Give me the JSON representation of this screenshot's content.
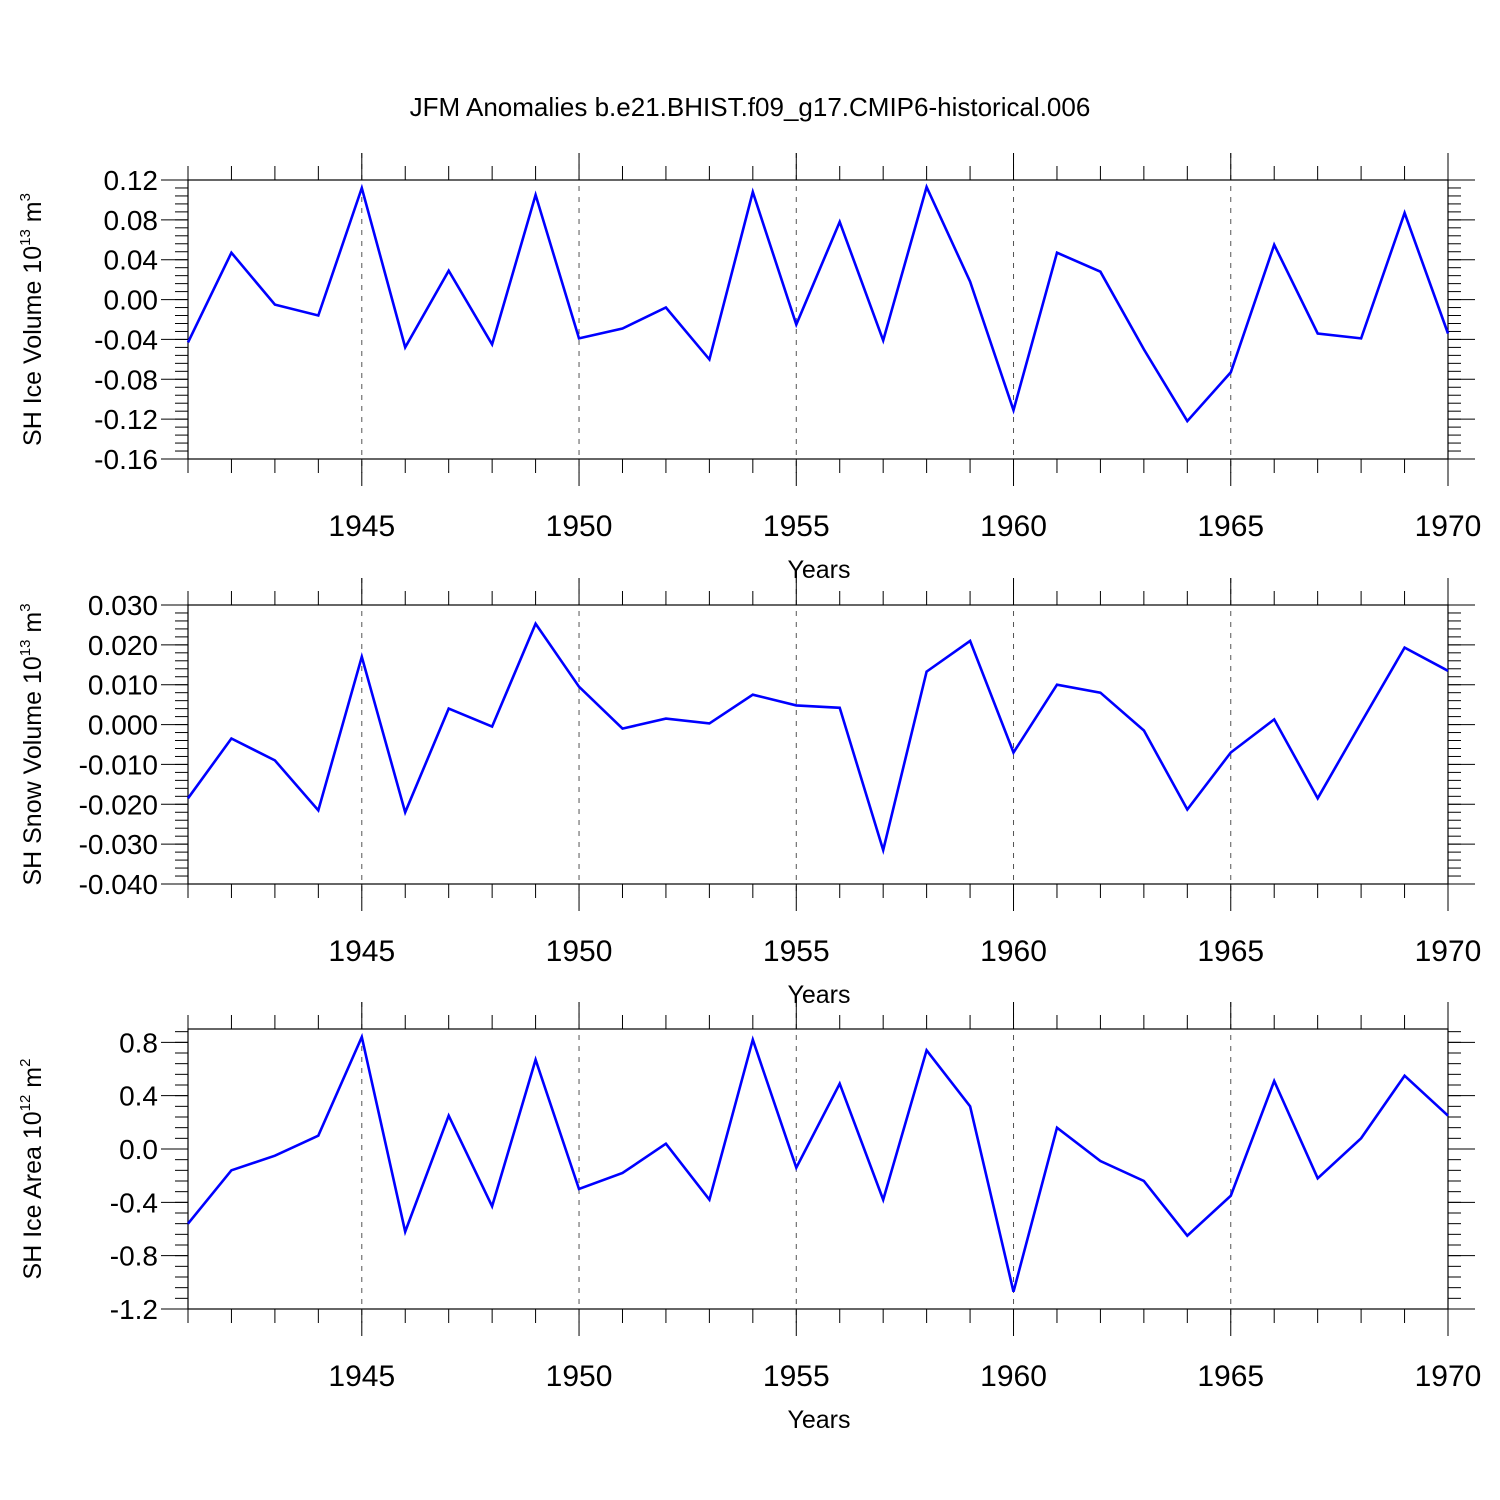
{
  "title": "JFM Anomalies b.e21.BHIST.f09_g17.CMIP6-historical.006",
  "line_color": "#0000ff",
  "chart_data": [
    {
      "type": "line",
      "ylabel": {
        "main": "SH Ice Volume 10",
        "sup": "13",
        "unit": " m",
        "unit_sup": "3"
      },
      "xlabel": "Years",
      "xlim": [
        1941,
        1970
      ],
      "ylim": [
        -0.16,
        0.12
      ],
      "yticks": [
        "0.12",
        "0.08",
        "0.04",
        "0.00",
        "-0.04",
        "-0.08",
        "-0.12",
        "-0.16"
      ],
      "ytick_values": [
        0.12,
        0.08,
        0.04,
        0.0,
        -0.04,
        -0.08,
        -0.12,
        -0.16
      ],
      "yminor_step": 0.008,
      "xticks": [
        "1945",
        "1950",
        "1955",
        "1960",
        "1965",
        "1970"
      ],
      "xtick_values": [
        1945,
        1950,
        1955,
        1960,
        1965,
        1970
      ],
      "x": [
        1941,
        1942,
        1943,
        1944,
        1945,
        1946,
        1947,
        1948,
        1949,
        1950,
        1951,
        1952,
        1953,
        1954,
        1955,
        1956,
        1957,
        1958,
        1959,
        1960,
        1961,
        1962,
        1963,
        1964,
        1965,
        1966,
        1967,
        1968,
        1969,
        1970
      ],
      "values": [
        -0.043,
        0.047,
        -0.005,
        -0.016,
        0.112,
        -0.048,
        0.029,
        -0.045,
        0.105,
        -0.039,
        -0.029,
        -0.008,
        -0.06,
        0.108,
        -0.025,
        0.078,
        -0.041,
        0.113,
        0.018,
        -0.111,
        0.047,
        0.028,
        -0.05,
        -0.122,
        -0.073,
        0.055,
        -0.034,
        -0.039,
        0.087,
        -0.034
      ]
    },
    {
      "type": "line",
      "ylabel": {
        "main": "SH Snow Volume 10",
        "sup": "13",
        "unit": " m",
        "unit_sup": "3"
      },
      "xlabel": "Years",
      "xlim": [
        1941,
        1970
      ],
      "ylim": [
        -0.04,
        0.03
      ],
      "yticks": [
        "0.030",
        "0.020",
        "0.010",
        "0.000",
        "-0.010",
        "-0.020",
        "-0.030",
        "-0.040"
      ],
      "ytick_values": [
        0.03,
        0.02,
        0.01,
        0.0,
        -0.01,
        -0.02,
        -0.03,
        -0.04
      ],
      "yminor_step": 0.002,
      "xticks": [
        "1945",
        "1950",
        "1955",
        "1960",
        "1965",
        "1970"
      ],
      "xtick_values": [
        1945,
        1950,
        1955,
        1960,
        1965,
        1970
      ],
      "x": [
        1941,
        1942,
        1943,
        1944,
        1945,
        1946,
        1947,
        1948,
        1949,
        1950,
        1951,
        1952,
        1953,
        1954,
        1955,
        1956,
        1957,
        1958,
        1959,
        1960,
        1961,
        1962,
        1963,
        1964,
        1965,
        1966,
        1967,
        1968,
        1969,
        1970
      ],
      "values": [
        -0.0185,
        -0.0035,
        -0.009,
        -0.0215,
        0.017,
        -0.022,
        0.004,
        -0.0005,
        0.0253,
        0.0095,
        -0.001,
        0.0015,
        0.0003,
        0.0075,
        0.0048,
        0.0042,
        -0.0315,
        0.0133,
        0.021,
        -0.007,
        0.01,
        0.008,
        -0.0015,
        -0.0213,
        -0.007,
        0.0013,
        -0.0185,
        0.0005,
        0.0193,
        0.0135
      ]
    },
    {
      "type": "line",
      "ylabel": {
        "main": "SH Ice Area 10",
        "sup": "12",
        "unit": " m",
        "unit_sup": "2"
      },
      "xlabel": "Years",
      "xlim": [
        1941,
        1970
      ],
      "ylim": [
        -1.2,
        0.9
      ],
      "yticks": [
        "0.8",
        "0.4",
        "0.0",
        "-0.4",
        "-0.8",
        "-1.2"
      ],
      "ytick_values": [
        0.8,
        0.4,
        0.0,
        -0.4,
        -0.8,
        -1.2
      ],
      "yminor_step": 0.08,
      "xticks": [
        "1945",
        "1950",
        "1955",
        "1960",
        "1965",
        "1970"
      ],
      "xtick_values": [
        1945,
        1950,
        1955,
        1960,
        1965,
        1970
      ],
      "x": [
        1941,
        1942,
        1943,
        1944,
        1945,
        1946,
        1947,
        1948,
        1949,
        1950,
        1951,
        1952,
        1953,
        1954,
        1955,
        1956,
        1957,
        1958,
        1959,
        1960,
        1961,
        1962,
        1963,
        1964,
        1965,
        1966,
        1967,
        1968,
        1969,
        1970
      ],
      "values": [
        -0.56,
        -0.16,
        -0.05,
        0.1,
        0.84,
        -0.62,
        0.25,
        -0.43,
        0.67,
        -0.3,
        -0.18,
        0.04,
        -0.38,
        0.82,
        -0.14,
        0.49,
        -0.38,
        0.74,
        0.32,
        -1.07,
        0.16,
        -0.09,
        -0.24,
        -0.65,
        -0.35,
        0.51,
        -0.22,
        0.08,
        0.55,
        0.25
      ]
    }
  ]
}
